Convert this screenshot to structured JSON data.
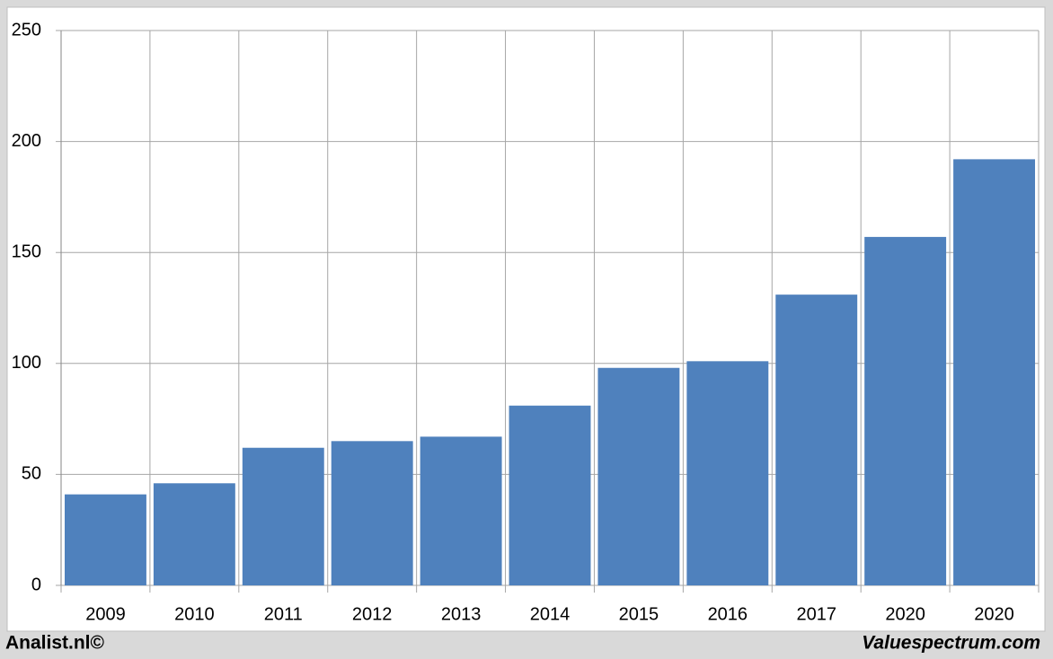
{
  "chart_data": {
    "type": "bar",
    "categories": [
      "2009",
      "2010",
      "2011",
      "2012",
      "2013",
      "2014",
      "2015",
      "2016",
      "2017",
      "2020",
      "2020"
    ],
    "values": [
      41,
      46,
      62,
      65,
      67,
      81,
      98,
      101,
      131,
      157,
      192
    ],
    "color": "#4f81bd",
    "ylim": [
      0,
      250
    ],
    "yticks": [
      0,
      50,
      100,
      150,
      200,
      250
    ],
    "grid": true,
    "footer_left": "Analist.nl©",
    "footer_right": "Valuespectrum.com"
  }
}
